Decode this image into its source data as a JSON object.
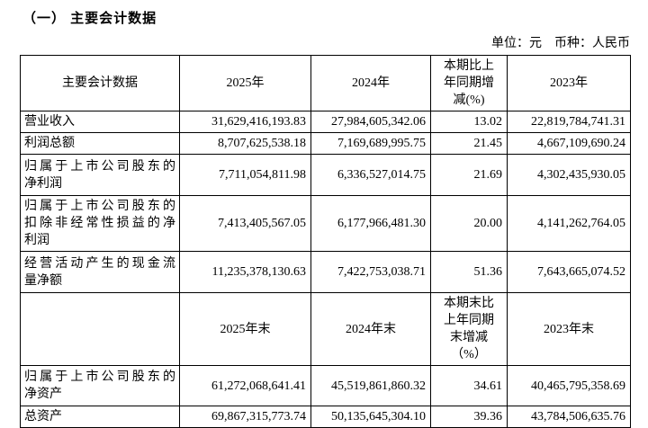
{
  "page": {
    "title": "（一） 主要会计数据",
    "unit_note": "单位：元　币种：人民币"
  },
  "table": {
    "header_period": {
      "label": "主要会计数据",
      "col_2025": "2025年",
      "col_2024": "2024年",
      "col_change": "本期比上\n年同期增\n减(%)",
      "col_2023": "2023年"
    },
    "rows_period": [
      {
        "label": "营业收入",
        "y2025": "31,629,416,193.83",
        "y2024": "27,984,605,342.06",
        "change": "13.02",
        "y2023": "22,819,784,741.31"
      },
      {
        "label": "利润总额",
        "y2025": "8,707,625,538.18",
        "y2024": "7,169,689,995.75",
        "change": "21.45",
        "y2023": "4,667,109,690.24"
      },
      {
        "label": "归属于上市公司股东的\n净利润",
        "y2025": "7,711,054,811.98",
        "y2024": "6,336,527,014.75",
        "change": "21.69",
        "y2023": "4,302,435,930.05"
      },
      {
        "label": "归属于上市公司股东的\n扣除非经常性损益的净\n利润",
        "y2025": "7,413,405,567.05",
        "y2024": "6,177,966,481.30",
        "change": "20.00",
        "y2023": "4,141,262,764.05"
      },
      {
        "label": "经营活动产生的现金流\n量净额",
        "y2025": "11,235,378,130.63",
        "y2024": "7,422,753,038.71",
        "change": "51.36",
        "y2023": "7,643,665,074.52"
      }
    ],
    "header_end": {
      "label": "",
      "col_2025": "2025年末",
      "col_2024": "2024年末",
      "col_change": "本期末比\n上年同期\n末增减\n（%）",
      "col_2023": "2023年末"
    },
    "rows_end": [
      {
        "label": "归属于上市公司股东的\n净资产",
        "y2025": "61,272,068,641.41",
        "y2024": "45,519,861,860.32",
        "change": "34.61",
        "y2023": "40,465,795,358.69"
      },
      {
        "label": "总资产",
        "y2025": "69,867,315,773.74",
        "y2024": "50,135,645,304.10",
        "change": "39.36",
        "y2023": "43,784,506,635.76"
      }
    ]
  }
}
